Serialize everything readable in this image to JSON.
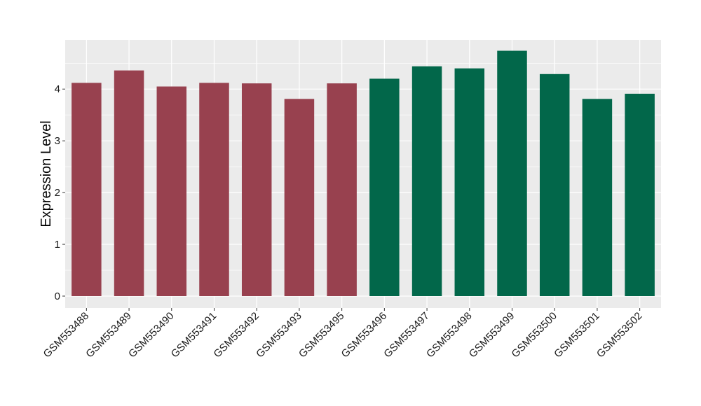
{
  "chart_data": {
    "type": "bar",
    "title": "",
    "xlabel": "",
    "ylabel": "Expression Level",
    "ylim": [
      -0.23,
      4.95
    ],
    "yticks": [
      0,
      1,
      2,
      3,
      4
    ],
    "grid": true,
    "legend": "none",
    "panel_background": "#EBEBEB",
    "grid_color": "#FFFFFF",
    "categories": [
      "GSM553488",
      "GSM553489",
      "GSM553490",
      "GSM553491",
      "GSM553492",
      "GSM553493",
      "GSM553495",
      "GSM553496",
      "GSM553497",
      "GSM553498",
      "GSM553499",
      "GSM553500",
      "GSM553501",
      "GSM553502"
    ],
    "values": [
      4.12,
      4.36,
      4.05,
      4.12,
      4.11,
      3.81,
      4.11,
      4.2,
      4.44,
      4.4,
      4.74,
      4.29,
      3.81,
      3.91
    ],
    "bar_colors": [
      "#98414F",
      "#98414F",
      "#98414F",
      "#98414F",
      "#98414F",
      "#98414F",
      "#98414F",
      "#02674A",
      "#02674A",
      "#02674A",
      "#02674A",
      "#02674A",
      "#02674A",
      "#02674A"
    ]
  }
}
